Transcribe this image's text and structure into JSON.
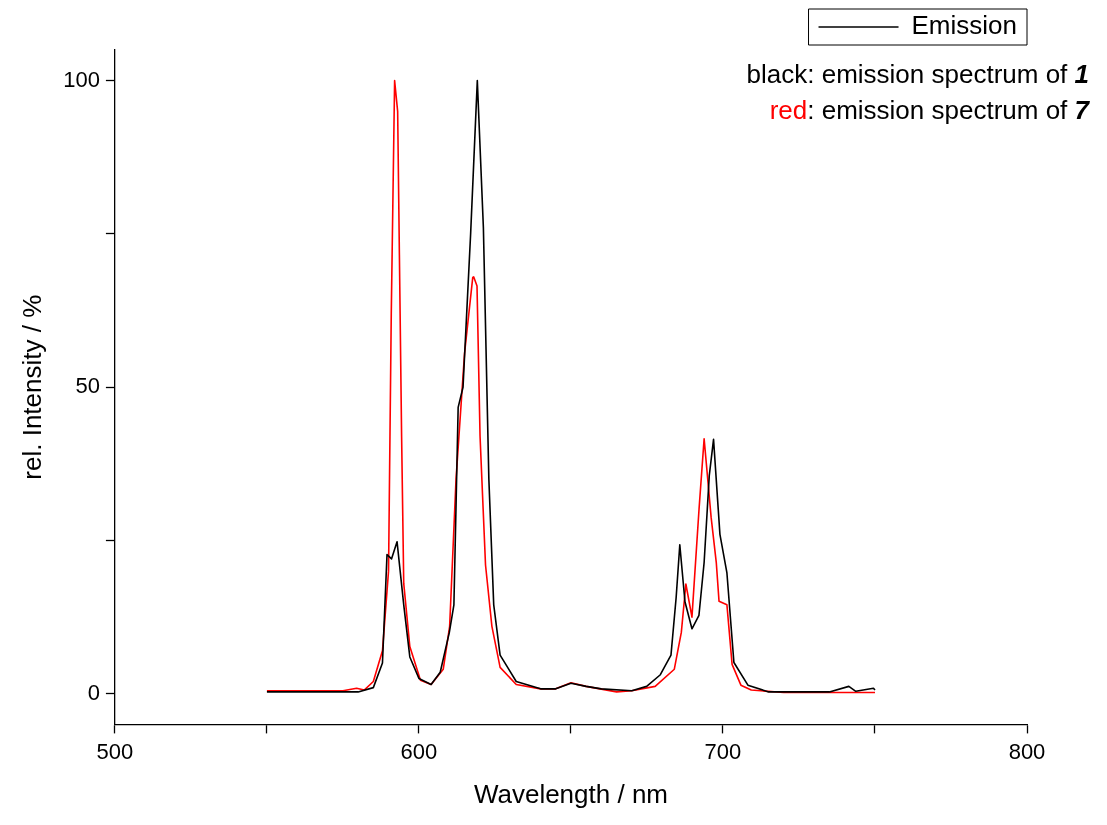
{
  "chart_data": {
    "type": "line",
    "xlabel": "Wavelength / nm",
    "ylabel": "rel. Intensity / %",
    "xlim": [
      500,
      800
    ],
    "xticks": [
      500,
      {
        "value": 550,
        "label": null
      },
      600,
      {
        "value": 650,
        "label": null
      },
      700,
      {
        "value": 750,
        "label": null
      },
      800
    ],
    "ylim": [
      -5,
      105
    ],
    "yticks": [
      0,
      {
        "value": 25,
        "label": null
      },
      50,
      {
        "value": 75,
        "label": null
      },
      100
    ],
    "grid": false,
    "legend": "top right",
    "marker": "none",
    "line_style": "solid",
    "annotations": [
      "black: emission spectrum of 1",
      "red: emission spectrum of 7"
    ],
    "series": [
      {
        "name": "Emission",
        "color": "#000000",
        "x": [
          550,
          560,
          570,
          580,
          585,
          588,
          589.5,
          591,
          592.8,
          595,
          597,
          600,
          604,
          607,
          610,
          611.5,
          612.9,
          614.5,
          617,
          619.2,
          621.2,
          623,
          624.6,
          626.7,
          632,
          640,
          645,
          650,
          655,
          660,
          670,
          674.9,
          679.4,
          682.9,
          684.6,
          685.8,
          687.5,
          689.8,
          692.1,
          693.8,
          695.5,
          696.9,
          699,
          701.3,
          703.6,
          708.2,
          715,
          725,
          735,
          741.4,
          743.7,
          749.5,
          750
        ],
        "values": [
          0.3,
          0.3,
          0.3,
          0.3,
          1,
          5,
          22.7,
          22,
          24.8,
          14.5,
          6,
          2.5,
          1.5,
          3.5,
          10,
          14.5,
          46.7,
          50,
          75,
          100,
          76,
          35,
          14.5,
          6.3,
          2,
          0.8,
          0.8,
          1.7,
          1.2,
          0.8,
          0.5,
          1.2,
          3.1,
          6.3,
          15.7,
          24.3,
          15,
          10.6,
          12.8,
          21.4,
          35.6,
          41.5,
          26,
          19.7,
          5.1,
          1.4,
          0.3,
          0.3,
          0.3,
          1.2,
          0.4,
          0.9,
          0.6
        ]
      },
      {
        "color": "#ff0000",
        "x": [
          550,
          565,
          575,
          579.5,
          582,
          585,
          588,
          590,
          590.9,
          592,
          593,
          594.3,
          595,
          597,
          600.5,
          604,
          608,
          610.1,
          612.2,
          615,
          617.7,
          618,
          619.1,
          620.1,
          621.9,
          624,
          626.7,
          632,
          640,
          645,
          650,
          655,
          665,
          670,
          677.7,
          684,
          686.3,
          687.8,
          689.8,
          692.1,
          693.8,
          696.1,
          697.8,
          698.7,
          701.3,
          703,
          705.9,
          709.3,
          720,
          735,
          750
        ],
        "values": [
          0.5,
          0.5,
          0.5,
          0.9,
          0.6,
          2,
          7,
          20,
          62,
          100,
          95,
          42,
          18,
          7.7,
          2.2,
          1.5,
          4,
          11,
          35,
          55.5,
          67.9,
          68,
          66.5,
          42,
          21,
          11,
          4.3,
          1.5,
          0.8,
          0.8,
          1.8,
          1.2,
          0.3,
          0.5,
          1.2,
          4,
          10,
          17.9,
          12.5,
          29.9,
          41.6,
          28.8,
          21.4,
          15.1,
          14.5,
          4.8,
          1.4,
          0.6,
          0.2,
          0.2,
          0.2
        ]
      }
    ]
  }
}
